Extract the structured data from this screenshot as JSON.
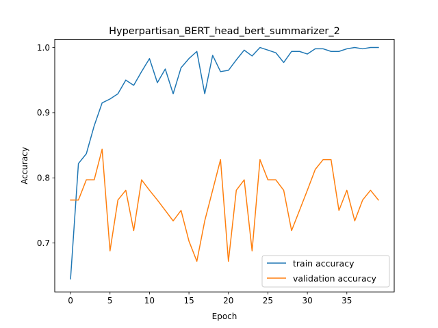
{
  "chart_data": {
    "type": "line",
    "title": "Hyperpartisan_BERT_head_bert_summarizer_2",
    "xlabel": "Epoch",
    "ylabel": "Accuracy",
    "xlim": [
      -2,
      41
    ],
    "ylim": [
      0.625,
      1.0125
    ],
    "xticks": [
      0,
      5,
      10,
      15,
      20,
      25,
      30,
      35
    ],
    "yticks": [
      0.7,
      0.8,
      0.9,
      1.0
    ],
    "ytick_labels": [
      "0.7",
      "0.8",
      "0.9",
      "1.0"
    ],
    "grid": false,
    "legend_position": "lower-right",
    "x": [
      0,
      1,
      2,
      3,
      4,
      5,
      6,
      7,
      8,
      9,
      10,
      11,
      12,
      13,
      14,
      15,
      16,
      17,
      18,
      19,
      20,
      21,
      22,
      23,
      24,
      25,
      26,
      27,
      28,
      29,
      30,
      31,
      32,
      33,
      34,
      35,
      36,
      37,
      38,
      39
    ],
    "series": [
      {
        "name": "train accuracy",
        "color": "#1f77b4",
        "values": [
          0.645,
          0.822,
          0.837,
          0.88,
          0.915,
          0.921,
          0.929,
          0.95,
          0.942,
          0.963,
          0.983,
          0.946,
          0.967,
          0.929,
          0.969,
          0.983,
          0.994,
          0.929,
          0.988,
          0.963,
          0.965,
          0.981,
          0.996,
          0.987,
          1.0,
          0.996,
          0.992,
          0.977,
          0.994,
          0.994,
          0.99,
          0.998,
          0.998,
          0.994,
          0.994,
          0.998,
          1.0,
          0.998,
          1.0,
          1.0
        ]
      },
      {
        "name": "validation accuracy",
        "color": "#ff7f0e",
        "values": [
          0.766,
          0.766,
          0.797,
          0.797,
          0.844,
          0.688,
          0.766,
          0.781,
          0.719,
          0.797,
          0.781,
          0.766,
          0.75,
          0.734,
          0.75,
          0.703,
          0.672,
          0.734,
          0.781,
          0.828,
          0.672,
          0.781,
          0.797,
          0.688,
          0.828,
          0.797,
          0.797,
          0.781,
          0.719,
          0.75,
          0.781,
          0.813,
          0.828,
          0.828,
          0.75,
          0.781,
          0.734,
          0.766,
          0.781,
          0.766
        ]
      }
    ]
  }
}
